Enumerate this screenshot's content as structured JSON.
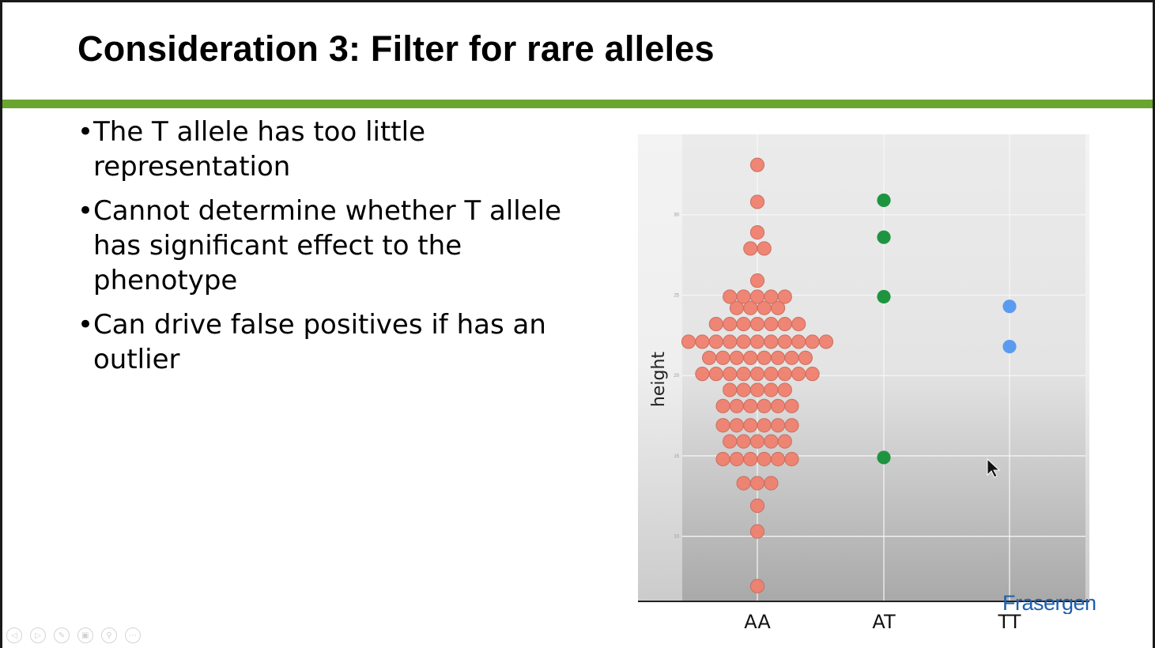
{
  "slide": {
    "title": "Consideration 3: Filter for rare alleles",
    "bullets": [
      {
        "marker": "•",
        "text": "The T allele has too little representation"
      },
      {
        "marker": "•",
        "text": "Cannot determine whether T allele has significant effect to the phenotype"
      },
      {
        "marker": "•",
        "text": "Can drive false positives if has an outlier"
      }
    ],
    "logo_text": "Frasergen",
    "accent_color": "#6aa52f"
  },
  "toolbar": {
    "buttons": [
      {
        "name": "previous-slide-button",
        "icon": "arrow-left-icon",
        "glyph": "◁"
      },
      {
        "name": "next-slide-button",
        "icon": "arrow-right-icon",
        "glyph": "▷"
      },
      {
        "name": "pen-tool-button",
        "icon": "pen-icon",
        "glyph": "✎"
      },
      {
        "name": "slides-overview-button",
        "icon": "slides-icon",
        "glyph": "▣"
      },
      {
        "name": "zoom-button",
        "icon": "magnifier-icon",
        "glyph": "⚲"
      },
      {
        "name": "more-options-button",
        "icon": "ellipsis-icon",
        "glyph": "⋯"
      }
    ]
  },
  "chart_data": {
    "type": "scatter",
    "subtype": "dotplot",
    "title": "",
    "xlabel": "",
    "ylabel": "height",
    "categories": [
      "AA",
      "AT",
      "TT"
    ],
    "ylim": [
      6,
      35
    ],
    "yticks": [
      10,
      15,
      20,
      25,
      30
    ],
    "grid": true,
    "legend": "none",
    "series": [
      {
        "category": "AA",
        "color": "#f0806e",
        "counts": [
          {
            "y": 6.9,
            "n": 1
          },
          {
            "y": 10.3,
            "n": 1
          },
          {
            "y": 11.9,
            "n": 1
          },
          {
            "y": 13.3,
            "n": 3
          },
          {
            "y": 14.8,
            "n": 6
          },
          {
            "y": 15.9,
            "n": 5
          },
          {
            "y": 16.9,
            "n": 6
          },
          {
            "y": 18.1,
            "n": 6
          },
          {
            "y": 19.1,
            "n": 5
          },
          {
            "y": 20.1,
            "n": 9
          },
          {
            "y": 21.1,
            "n": 8
          },
          {
            "y": 22.1,
            "n": 11
          },
          {
            "y": 23.2,
            "n": 7
          },
          {
            "y": 24.2,
            "n": 4
          },
          {
            "y": 24.9,
            "n": 5
          },
          {
            "y": 25.9,
            "n": 1
          },
          {
            "y": 27.9,
            "n": 2
          },
          {
            "y": 28.9,
            "n": 1
          },
          {
            "y": 30.8,
            "n": 1
          },
          {
            "y": 33.1,
            "n": 1
          }
        ]
      },
      {
        "category": "AT",
        "color": "#1e9441",
        "counts": [
          {
            "y": 14.9,
            "n": 1
          },
          {
            "y": 24.9,
            "n": 1
          },
          {
            "y": 28.6,
            "n": 1
          },
          {
            "y": 30.9,
            "n": 1
          }
        ]
      },
      {
        "category": "TT",
        "color": "#5b9bef",
        "counts": [
          {
            "y": 21.8,
            "n": 1
          },
          {
            "y": 24.3,
            "n": 1
          }
        ]
      }
    ]
  }
}
